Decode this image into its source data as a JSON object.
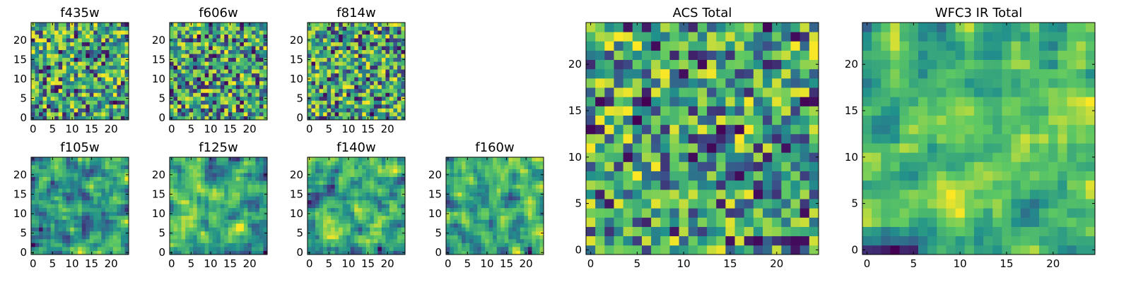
{
  "figure": {
    "description_colormap": "viridis",
    "palette": [
      "#440154",
      "#3b528b",
      "#21918c",
      "#5ec962",
      "#fde725"
    ]
  },
  "chart_data": [
    {
      "type": "heatmap",
      "title": "f435w",
      "grid_size": [
        25,
        25
      ],
      "xlim": [
        -0.5,
        24.5
      ],
      "ylim": [
        -0.5,
        24.5
      ],
      "xticks": [
        0,
        5,
        10,
        15,
        20
      ],
      "yticks": [
        0,
        5,
        10,
        15,
        20
      ],
      "xlabel": "",
      "ylabel": "",
      "value_range": [
        0,
        1
      ],
      "smoothness": 0,
      "seed": 11
    },
    {
      "type": "heatmap",
      "title": "f606w",
      "grid_size": [
        25,
        25
      ],
      "xlim": [
        -0.5,
        24.5
      ],
      "ylim": [
        -0.5,
        24.5
      ],
      "xticks": [
        0,
        5,
        10,
        15,
        20
      ],
      "yticks": [
        0,
        5,
        10,
        15,
        20
      ],
      "xlabel": "",
      "ylabel": "",
      "value_range": [
        0,
        1
      ],
      "smoothness": 0,
      "seed": 23
    },
    {
      "type": "heatmap",
      "title": "f814w",
      "grid_size": [
        25,
        25
      ],
      "xlim": [
        -0.5,
        24.5
      ],
      "ylim": [
        -0.5,
        24.5
      ],
      "xticks": [
        0,
        5,
        10,
        15,
        20
      ],
      "yticks": [
        0,
        5,
        10,
        15,
        20
      ],
      "xlabel": "",
      "ylabel": "",
      "value_range": [
        0,
        1
      ],
      "smoothness": 0,
      "seed": 37
    },
    {
      "type": "heatmap",
      "title": "f105w",
      "grid_size": [
        25,
        25
      ],
      "xlim": [
        -0.5,
        24.5
      ],
      "ylim": [
        -0.5,
        24.5
      ],
      "xticks": [
        0,
        5,
        10,
        15,
        20
      ],
      "yticks": [
        0,
        5,
        10,
        15,
        20
      ],
      "xlabel": "",
      "ylabel": "",
      "value_range": [
        0,
        1
      ],
      "smoothness": 1,
      "seed": 41
    },
    {
      "type": "heatmap",
      "title": "f125w",
      "grid_size": [
        25,
        25
      ],
      "xlim": [
        -0.5,
        24.5
      ],
      "ylim": [
        -0.5,
        24.5
      ],
      "xticks": [
        0,
        5,
        10,
        15,
        20
      ],
      "yticks": [
        0,
        5,
        10,
        15,
        20
      ],
      "xlabel": "",
      "ylabel": "",
      "value_range": [
        0,
        1
      ],
      "smoothness": 1,
      "seed": 53
    },
    {
      "type": "heatmap",
      "title": "f140w",
      "grid_size": [
        25,
        25
      ],
      "xlim": [
        -0.5,
        24.5
      ],
      "ylim": [
        -0.5,
        24.5
      ],
      "xticks": [
        0,
        5,
        10,
        15,
        20
      ],
      "yticks": [
        0,
        5,
        10,
        15,
        20
      ],
      "xlabel": "",
      "ylabel": "",
      "value_range": [
        0,
        1
      ],
      "smoothness": 1,
      "seed": 67
    },
    {
      "type": "heatmap",
      "title": "f160w",
      "grid_size": [
        25,
        25
      ],
      "xlim": [
        -0.5,
        24.5
      ],
      "ylim": [
        -0.5,
        24.5
      ],
      "xticks": [
        0,
        5,
        10,
        15,
        20
      ],
      "yticks": [
        0,
        5,
        10,
        15,
        20
      ],
      "xlabel": "",
      "ylabel": "",
      "value_range": [
        0,
        1
      ],
      "smoothness": 1,
      "seed": 79
    },
    {
      "type": "heatmap",
      "title": "ACS Total",
      "grid_size": [
        25,
        25
      ],
      "xlim": [
        -0.5,
        24.5
      ],
      "ylim": [
        -0.5,
        24.5
      ],
      "xticks": [
        0,
        5,
        10,
        15,
        20
      ],
      "yticks": [
        0,
        5,
        10,
        15,
        20
      ],
      "xlabel": "",
      "ylabel": "",
      "value_range": [
        0,
        1
      ],
      "smoothness": 0,
      "seed": 83
    },
    {
      "type": "heatmap",
      "title": "WFC3 IR Total",
      "grid_size": [
        25,
        25
      ],
      "xlim": [
        -0.5,
        24.5
      ],
      "ylim": [
        -0.5,
        24.5
      ],
      "xticks": [
        0,
        5,
        10,
        15,
        20
      ],
      "yticks": [
        0,
        5,
        10,
        15,
        20
      ],
      "xlabel": "",
      "ylabel": "",
      "value_range": [
        0,
        1
      ],
      "smoothness": 1,
      "seed": 97
    }
  ]
}
